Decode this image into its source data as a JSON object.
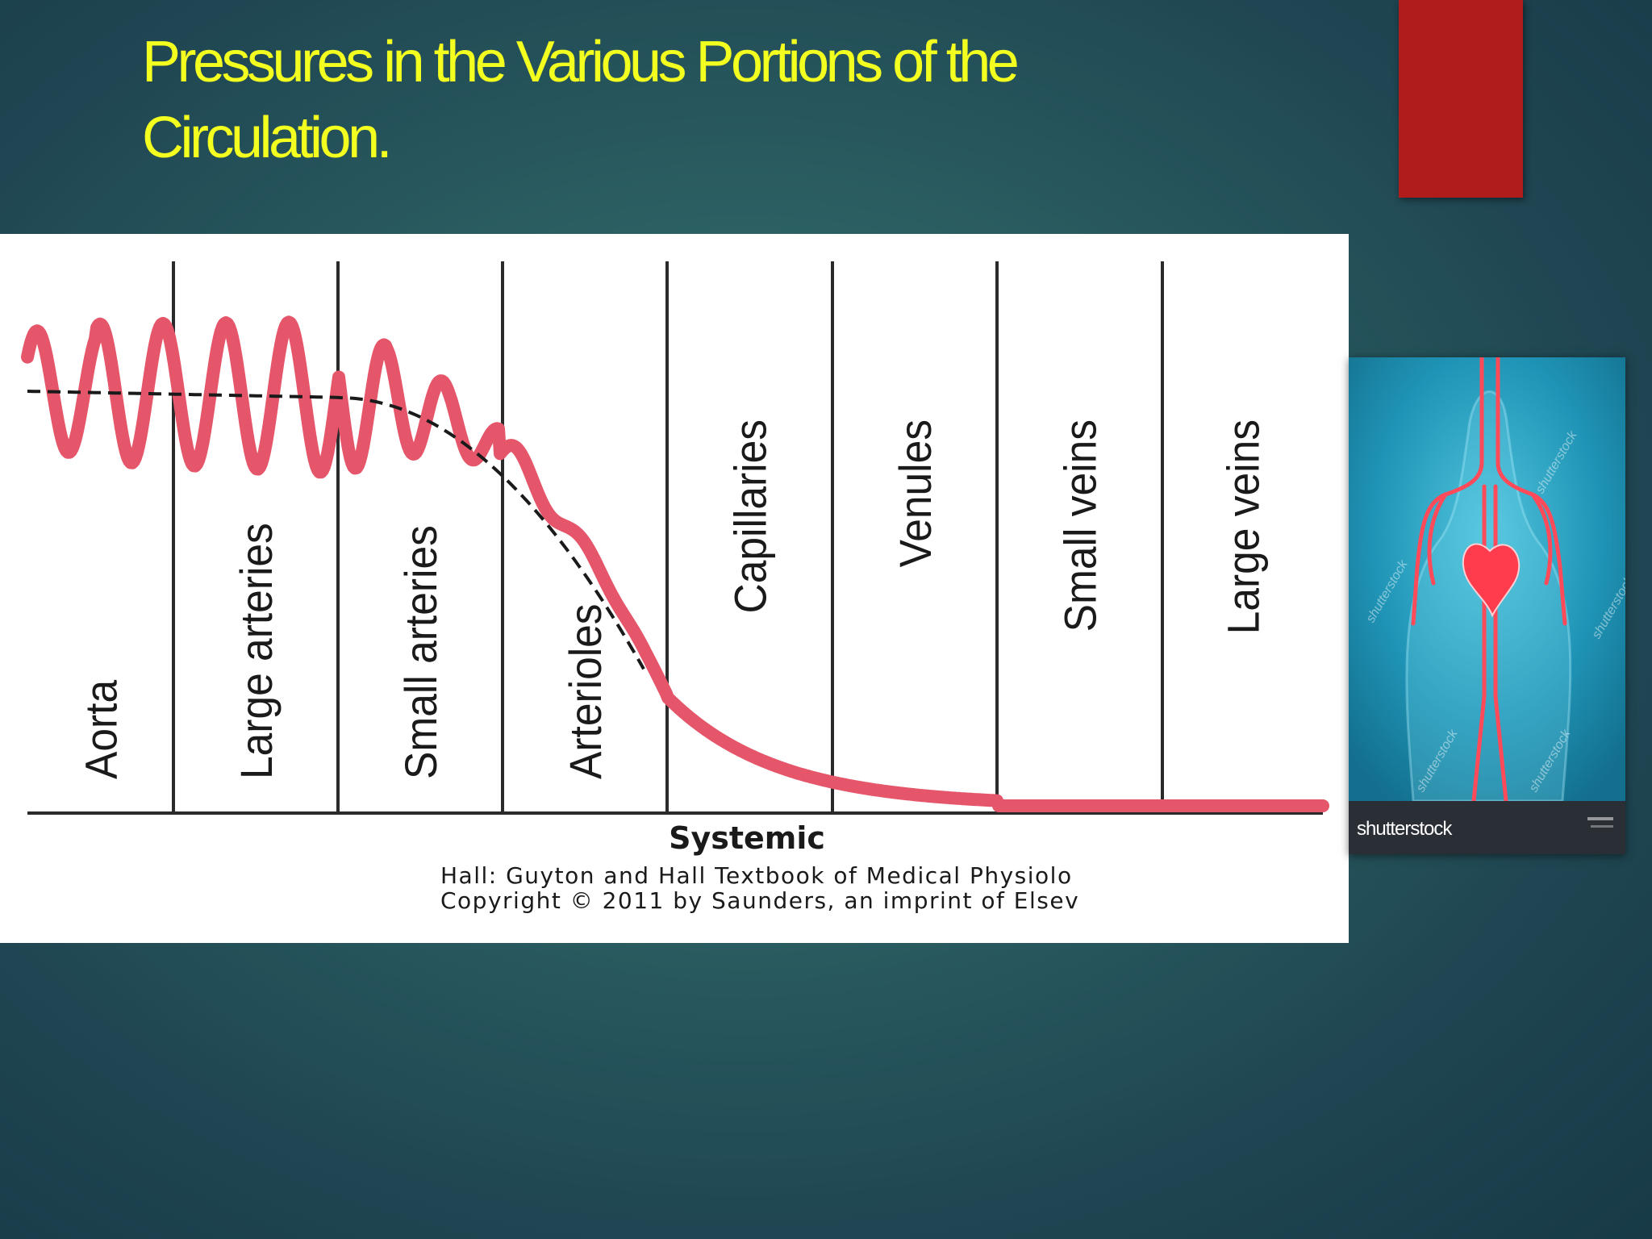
{
  "slide": {
    "title": "Pressures in the Various Portions of  the Circulation."
  },
  "chart_data": {
    "type": "line",
    "categories": [
      "Aorta",
      "Large arteries",
      "Small arteries",
      "Arterioles",
      "Capillaries",
      "Venules",
      "Small veins",
      "Large veins"
    ],
    "xlabel": "Systemic",
    "source_lines": [
      "Hall: Guyton and Hall Textbook of Medical Physiolo",
      "Copyright © 2011 by Saunders, an imprint of Elsev"
    ],
    "colors": {
      "pulsatile_pressure": "#e5566a",
      "mean_pressure": "#1a1a1a"
    }
  },
  "photo": {
    "brand": "shutterstock",
    "watermark": "shutterstock",
    "accent_color": "#b01c1c"
  }
}
